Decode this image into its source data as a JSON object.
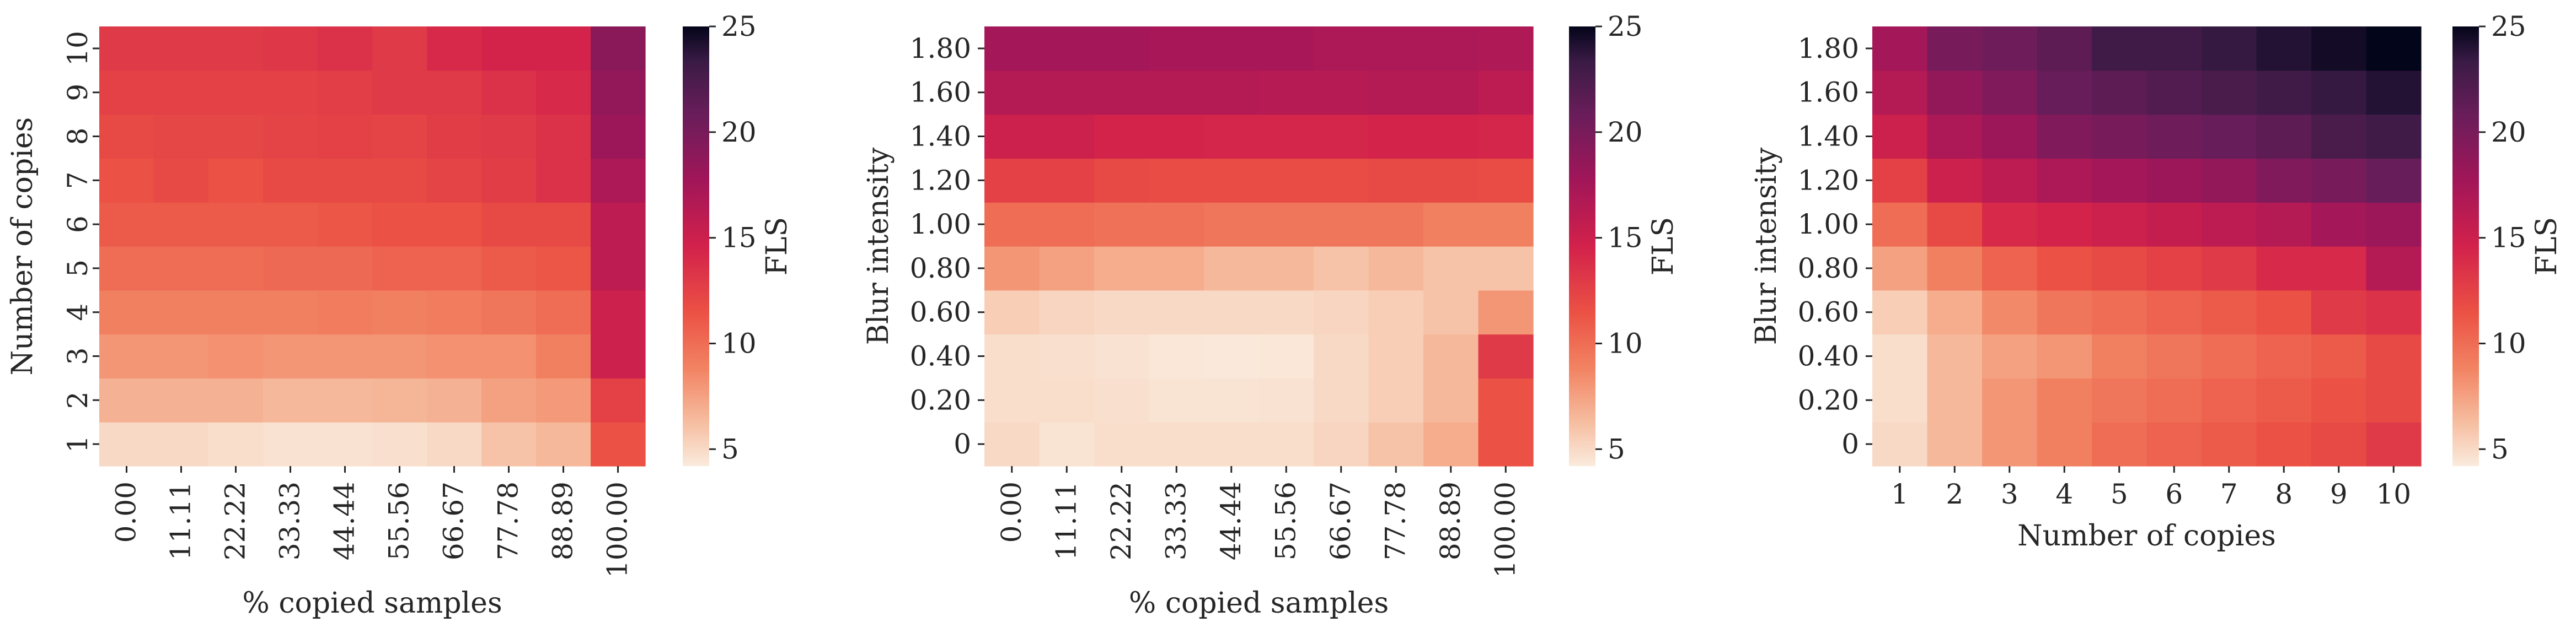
{
  "chart_data": [
    {
      "type": "heatmap",
      "xlabel": "% copied samples",
      "ylabel": "Number of copies",
      "x_ticks": [
        "0.00",
        "11.11",
        "22.22",
        "33.33",
        "44.44",
        "55.56",
        "66.67",
        "77.78",
        "88.89",
        "100.00"
      ],
      "y_ticks": [
        "1",
        "2",
        "3",
        "4",
        "5",
        "6",
        "7",
        "8",
        "9",
        "10"
      ],
      "x_tick_rotation": 90,
      "y_tick_rotation": 90,
      "colorbar": {
        "label": "FLS",
        "ticks": [
          5,
          10,
          15,
          20,
          25
        ],
        "range": [
          4.2,
          25
        ],
        "colormap": "rocket_r"
      },
      "values_by_y_bottom_to_top": [
        [
          5.0,
          5.0,
          4.8,
          4.6,
          4.6,
          4.7,
          5.0,
          6.0,
          6.5,
          11.5
        ],
        [
          6.8,
          6.8,
          6.8,
          6.5,
          6.5,
          6.6,
          6.8,
          7.5,
          7.8,
          12.5
        ],
        [
          8.0,
          8.0,
          8.2,
          8.0,
          8.0,
          8.0,
          8.2,
          8.2,
          9.0,
          15.0
        ],
        [
          9.0,
          9.0,
          9.0,
          9.0,
          9.2,
          9.0,
          9.2,
          9.5,
          10.0,
          15.0
        ],
        [
          10.0,
          10.0,
          10.0,
          10.2,
          10.2,
          10.5,
          10.5,
          11.0,
          11.2,
          16.0
        ],
        [
          11.0,
          11.0,
          11.0,
          11.0,
          11.2,
          11.5,
          11.5,
          12.0,
          12.0,
          16.0
        ],
        [
          11.5,
          12.0,
          11.5,
          12.0,
          12.0,
          12.0,
          12.3,
          12.8,
          13.5,
          17.0
        ],
        [
          12.0,
          12.2,
          12.2,
          12.3,
          12.5,
          12.3,
          12.8,
          13.0,
          13.5,
          18.0
        ],
        [
          12.5,
          12.5,
          12.5,
          12.5,
          12.7,
          13.0,
          13.0,
          13.5,
          14.0,
          18.5
        ],
        [
          13.0,
          13.0,
          13.0,
          13.2,
          13.5,
          13.0,
          14.0,
          14.5,
          14.5,
          19.0
        ]
      ]
    },
    {
      "type": "heatmap",
      "xlabel": "% copied samples",
      "ylabel": "Blur intensity",
      "x_ticks": [
        "0.00",
        "11.11",
        "22.22",
        "33.33",
        "44.44",
        "55.56",
        "66.67",
        "77.78",
        "88.89",
        "100.00"
      ],
      "y_ticks": [
        "0",
        "0.20",
        "0.40",
        "0.60",
        "0.80",
        "1.00",
        "1.20",
        "1.40",
        "1.60",
        "1.80"
      ],
      "x_tick_rotation": 90,
      "y_tick_rotation": 0,
      "colorbar": {
        "label": "FLS",
        "ticks": [
          5,
          10,
          15,
          20,
          25
        ],
        "range": [
          4.2,
          25
        ],
        "colormap": "rocket_r"
      },
      "values_by_y_bottom_to_top": [
        [
          5.0,
          4.5,
          4.8,
          4.8,
          4.8,
          4.8,
          5.2,
          6.0,
          7.0,
          11.5
        ],
        [
          4.8,
          4.8,
          4.7,
          4.5,
          4.5,
          4.6,
          5.0,
          5.5,
          6.5,
          11.5
        ],
        [
          4.8,
          4.7,
          4.6,
          4.4,
          4.3,
          4.4,
          5.0,
          5.5,
          6.5,
          13.0
        ],
        [
          5.5,
          5.2,
          5.0,
          5.0,
          5.0,
          5.0,
          5.2,
          5.5,
          6.0,
          8.0
        ],
        [
          8.0,
          7.5,
          7.0,
          7.0,
          6.5,
          6.5,
          6.0,
          6.5,
          6.0,
          6.0
        ],
        [
          10.0,
          10.0,
          9.8,
          9.8,
          9.5,
          9.5,
          9.5,
          9.5,
          9.0,
          9.0
        ],
        [
          12.5,
          12.5,
          12.0,
          11.8,
          11.8,
          11.8,
          11.8,
          12.0,
          12.0,
          11.8
        ],
        [
          15.0,
          15.0,
          14.5,
          14.5,
          14.3,
          14.3,
          14.3,
          14.5,
          14.5,
          14.3
        ],
        [
          16.5,
          16.5,
          16.5,
          16.5,
          16.5,
          16.3,
          16.3,
          16.5,
          16.5,
          16.0
        ],
        [
          17.5,
          17.5,
          17.5,
          17.3,
          17.3,
          17.3,
          17.0,
          17.0,
          17.0,
          16.8
        ]
      ]
    },
    {
      "type": "heatmap",
      "xlabel": "Number of copies",
      "ylabel": "Blur intensity",
      "x_ticks": [
        "1",
        "2",
        "3",
        "4",
        "5",
        "6",
        "7",
        "8",
        "9",
        "10"
      ],
      "y_ticks": [
        "0",
        "0.20",
        "0.40",
        "0.60",
        "0.80",
        "1.00",
        "1.20",
        "1.40",
        "1.60",
        "1.80"
      ],
      "x_tick_rotation": 0,
      "y_tick_rotation": 0,
      "colorbar": {
        "label": "FLS",
        "ticks": [
          5,
          10,
          15,
          20,
          25
        ],
        "range": [
          4.2,
          25
        ],
        "colormap": "rocket_r"
      },
      "values_by_y_bottom_to_top": [
        [
          5.0,
          6.5,
          8.0,
          9.0,
          10.0,
          10.5,
          11.0,
          11.5,
          12.0,
          13.0
        ],
        [
          4.8,
          6.5,
          8.0,
          9.0,
          9.5,
          10.0,
          10.5,
          11.0,
          11.5,
          12.0
        ],
        [
          4.8,
          6.5,
          7.5,
          8.0,
          9.0,
          9.5,
          10.0,
          10.5,
          11.0,
          12.0
        ],
        [
          5.5,
          7.0,
          8.5,
          9.5,
          10.0,
          10.5,
          11.0,
          11.5,
          13.0,
          13.5
        ],
        [
          7.5,
          9.0,
          10.5,
          11.5,
          12.0,
          12.5,
          13.0,
          14.0,
          14.0,
          16.5
        ],
        [
          10.0,
          12.0,
          14.0,
          14.5,
          15.0,
          15.5,
          16.0,
          16.5,
          17.5,
          18.0
        ],
        [
          12.5,
          15.0,
          16.0,
          17.0,
          17.5,
          18.0,
          18.5,
          19.5,
          20.0,
          21.0
        ],
        [
          15.0,
          17.0,
          18.0,
          19.5,
          20.0,
          20.5,
          21.0,
          21.5,
          22.5,
          23.0
        ],
        [
          16.5,
          18.5,
          19.5,
          21.0,
          21.5,
          22.0,
          22.5,
          23.0,
          23.5,
          24.0
        ],
        [
          17.5,
          20.0,
          20.5,
          21.5,
          23.0,
          23.0,
          23.5,
          24.0,
          24.5,
          25.0
        ]
      ]
    }
  ]
}
